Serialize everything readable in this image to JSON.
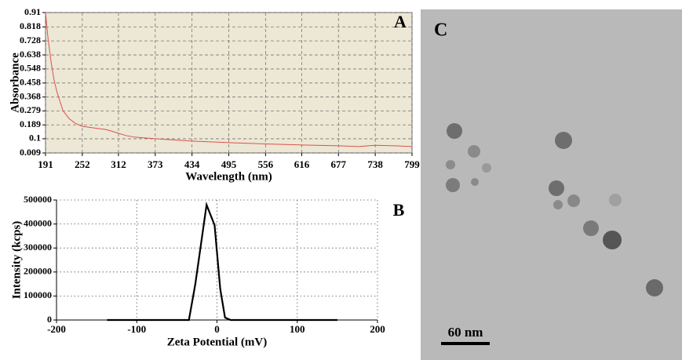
{
  "chart_data": [
    {
      "type": "line",
      "annotation": "A",
      "x_label": "Wavelength (nm)",
      "y_label": "Absorbance",
      "x": [
        191,
        195,
        200,
        205,
        210,
        220,
        230,
        240,
        252,
        270,
        290,
        300,
        312,
        325,
        340,
        373,
        434,
        495,
        556,
        616,
        677,
        710,
        738,
        770,
        799
      ],
      "series": [
        {
          "color": "#d9534f",
          "values": [
            0.91,
            0.75,
            0.6,
            0.48,
            0.4,
            0.28,
            0.23,
            0.2,
            0.18,
            0.17,
            0.16,
            0.15,
            0.135,
            0.12,
            0.11,
            0.1,
            0.085,
            0.075,
            0.067,
            0.06,
            0.055,
            0.05,
            0.058,
            0.055,
            0.05
          ]
        }
      ],
      "xlim": [
        191,
        799
      ],
      "xticks": [
        191,
        252,
        312,
        373,
        434,
        495,
        556,
        616,
        677,
        738,
        799
      ],
      "ylim": [
        0.009,
        0.91
      ],
      "yticks": [
        0.009,
        0.1,
        0.189,
        0.279,
        0.368,
        0.458,
        0.548,
        0.638,
        0.728,
        0.818,
        0.91
      ],
      "grid": "dashed",
      "background": "#ede7d5"
    },
    {
      "type": "line",
      "annotation": "B",
      "x_label": "Zeta Potential (mV)",
      "y_label": "Intensity (kcps)",
      "x": [
        -137,
        -35,
        -27,
        -13,
        -3,
        4,
        10,
        17,
        150
      ],
      "series": [
        {
          "color": "#000000",
          "values": [
            0,
            0,
            150000,
            480000,
            395000,
            130000,
            10000,
            0,
            0
          ]
        }
      ],
      "xlim": [
        -200,
        200
      ],
      "xticks": [
        -200,
        -100,
        0,
        100,
        200
      ],
      "ylim": [
        0,
        500000
      ],
      "yticks": [
        0,
        100000,
        200000,
        300000,
        400000,
        500000
      ],
      "grid": "dotted",
      "background": "#ffffff"
    }
  ],
  "image_panel": {
    "label": "C",
    "scale_bar": "60 nm"
  }
}
